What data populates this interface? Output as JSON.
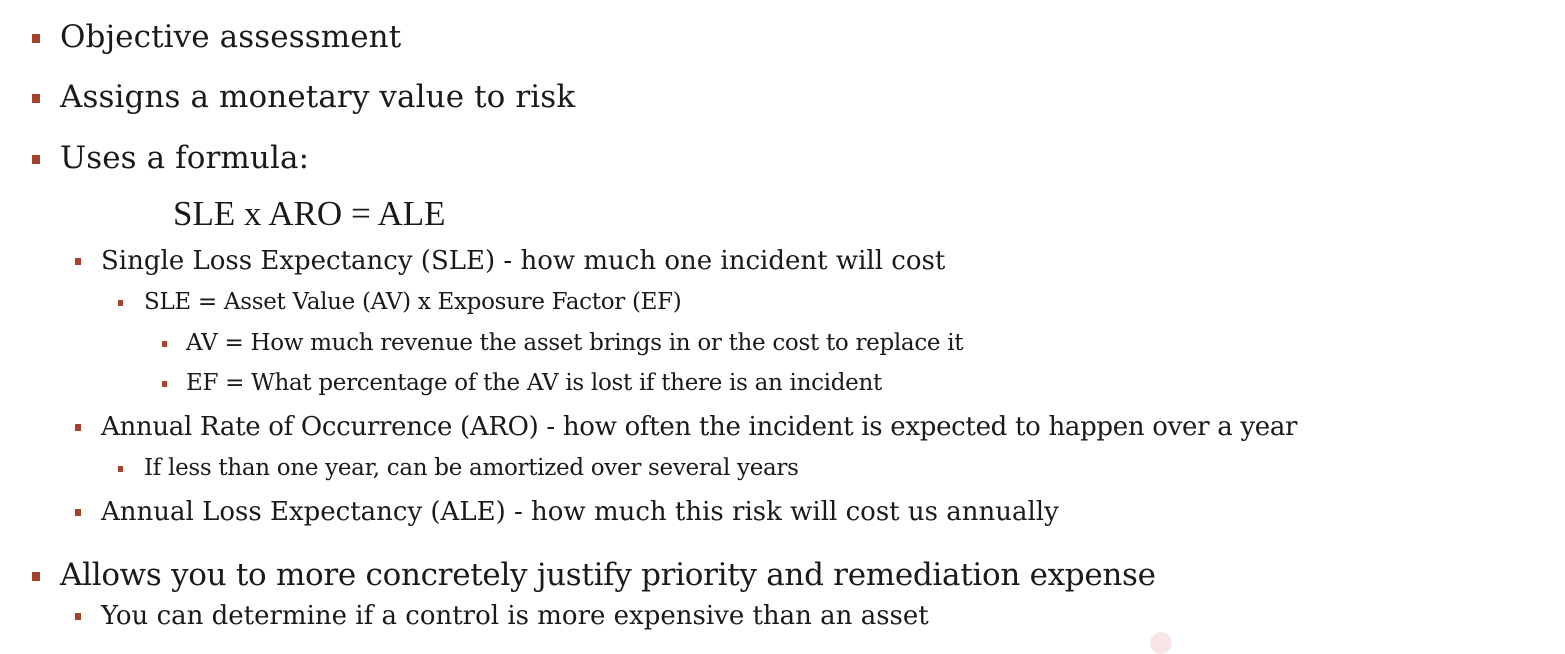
{
  "colors": {
    "bullet": "#a6412c",
    "text": "#1a1a1a",
    "background": "#ffffff"
  },
  "bullets": {
    "objective": "Objective assessment",
    "monetary": "Assigns a monetary value to risk",
    "formula_intro": "Uses a formula:",
    "formula": "SLE x ARO = ALE",
    "sle": "Single Loss Expectancy (SLE) - how much one incident will cost",
    "sle_def": "SLE = Asset Value (AV) x Exposure Factor (EF)",
    "av_def": "AV = How much revenue the asset brings in or the cost to replace it",
    "ef_def": "EF = What percentage of the AV is lost if there is an incident",
    "aro": "Annual Rate of Occurrence (ARO) - how often the incident is expected to happen over a year",
    "aro_note": "If less than one year, can be amortized over several years",
    "ale": "Annual Loss Expectancy (ALE) - how much this risk will cost us annually",
    "justify": "Allows you to more concretely justify priority and remediation expense",
    "control": "You can determine if a control is more expensive than an asset"
  }
}
